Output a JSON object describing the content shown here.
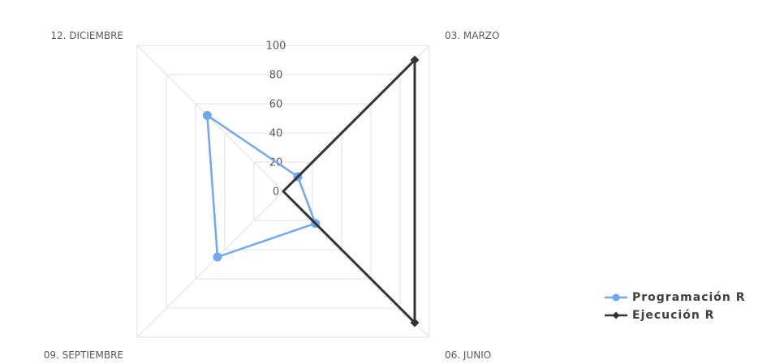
{
  "chart_data": {
    "type": "radar",
    "title": "",
    "categories": [
      "03. MARZO",
      "06. JUNIO",
      "09. SEPTIEMBRE",
      "12. DICIEMBRE"
    ],
    "rlim": [
      0,
      100
    ],
    "ticks": [
      "0",
      "20",
      "40",
      "60",
      "80",
      "100"
    ],
    "tick_values": [
      0,
      20,
      40,
      60,
      80,
      100
    ],
    "grid": true,
    "legend_position": "right",
    "series": [
      {
        "name": "Programación R",
        "values": [
          10,
          22,
          45,
          52
        ],
        "color": "#6fa8f0",
        "marker": "circle"
      },
      {
        "name": "Ejecución R",
        "values": [
          90,
          90,
          0,
          0
        ],
        "color": "#333333",
        "marker": "diamond"
      }
    ]
  }
}
